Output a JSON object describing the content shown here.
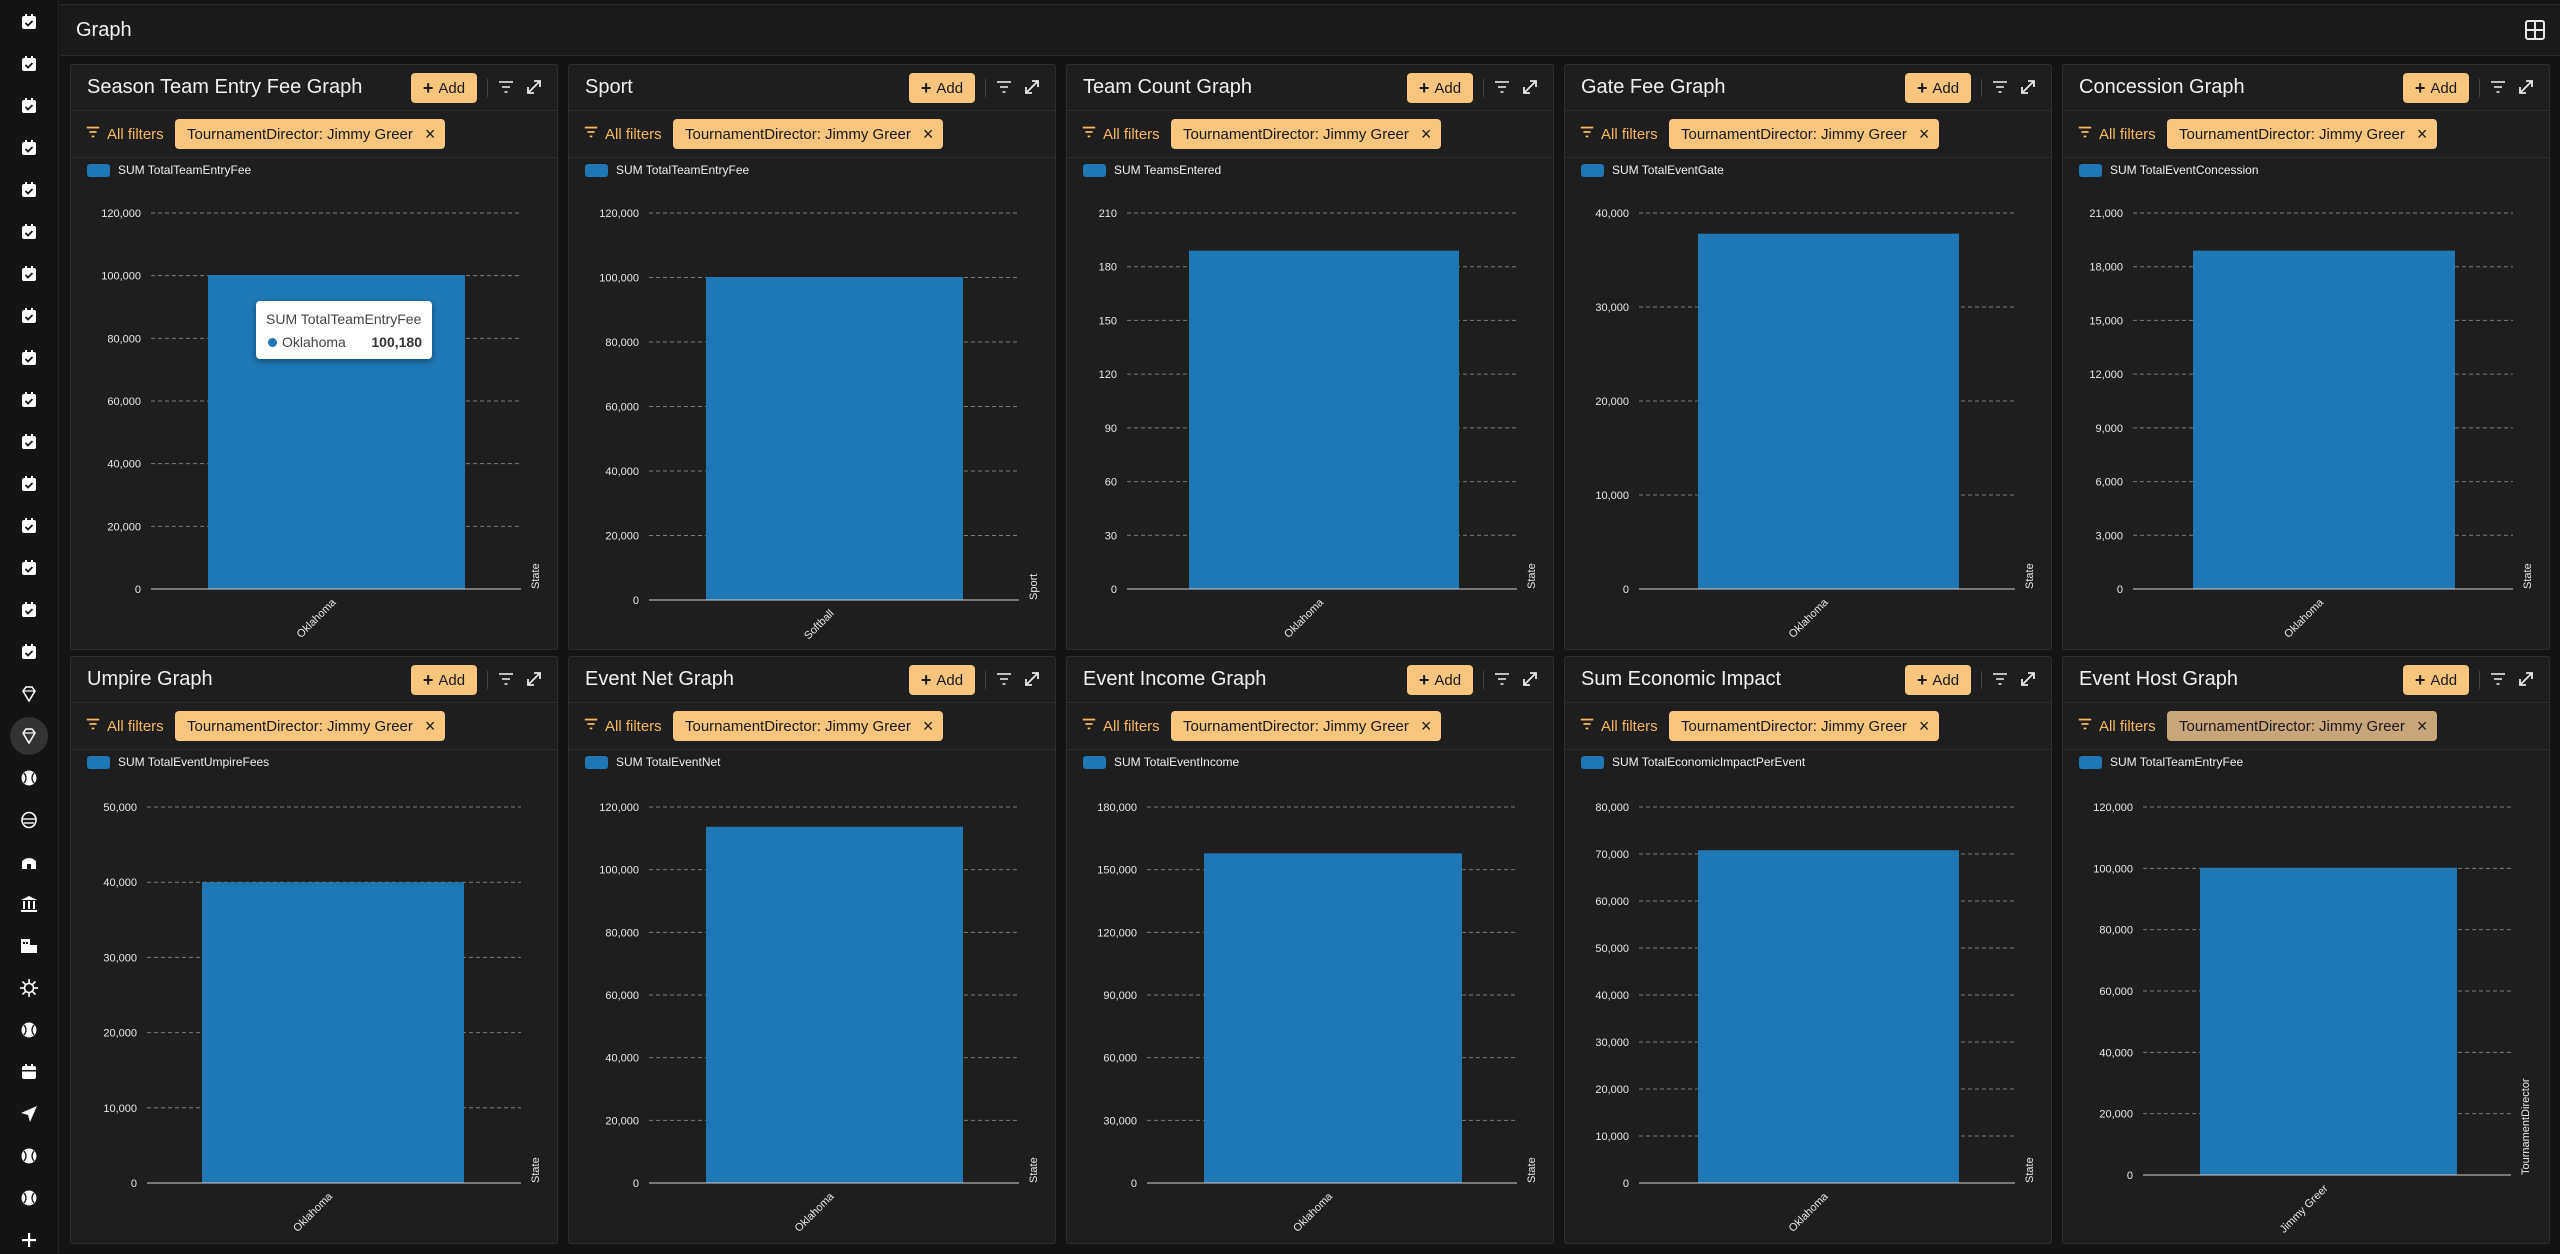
{
  "page": {
    "title": "Graph"
  },
  "ui": {
    "add_label": "Add",
    "all_filters_label": "All filters"
  },
  "colors": {
    "accent": "#f7c57d",
    "bar": "#1f77b4",
    "background": "#141414",
    "panel": "#1e1e1e"
  },
  "sidebar_icons": [
    "calendar-check-icon",
    "calendar-check-icon",
    "calendar-check-icon",
    "calendar-check-icon",
    "calendar-check-icon",
    "calendar-check-icon",
    "calendar-check-icon",
    "calendar-check-icon",
    "calendar-check-icon",
    "calendar-check-icon",
    "calendar-check-icon",
    "calendar-check-icon",
    "calendar-check-icon",
    "calendar-check-icon",
    "calendar-check-icon",
    "calendar-check-icon",
    "gem-icon",
    "gem-icon",
    "baseball-icon",
    "umpire-mask-icon",
    "stadium-icon",
    "bank-icon",
    "hotel-icon",
    "virus-icon",
    "baseball-icon",
    "calendar-icon",
    "send-icon",
    "baseball-icon",
    "baseball-icon",
    "plus-icon"
  ],
  "panels": [
    {
      "title": "Season Team Entry Fee Graph",
      "filter_chip": "TournamentDirector: Jimmy Greer",
      "legend": "SUM TotalTeamEntryFee",
      "tooltip": {
        "title": "SUM TotalTeamEntryFee",
        "category": "Oklahoma",
        "value": "100,180"
      }
    },
    {
      "title": "Sport",
      "filter_chip": "TournamentDirector: Jimmy Greer",
      "legend": "SUM TotalTeamEntryFee"
    },
    {
      "title": "Team Count Graph",
      "filter_chip": "TournamentDirector: Jimmy Greer",
      "legend": "SUM TeamsEntered"
    },
    {
      "title": "Gate Fee Graph",
      "filter_chip": "TournamentDirector: Jimmy Greer",
      "legend": "SUM TotalEventGate"
    },
    {
      "title": "Concession Graph",
      "filter_chip": "TournamentDirector: Jimmy Greer",
      "legend": "SUM TotalEventConcession"
    },
    {
      "title": "Umpire Graph",
      "filter_chip": "TournamentDirector: Jimmy Greer",
      "legend": "SUM TotalEventUmpireFees"
    },
    {
      "title": "Event Net Graph",
      "filter_chip": "TournamentDirector: Jimmy Greer",
      "legend": "SUM TotalEventNet"
    },
    {
      "title": "Event Income Graph",
      "filter_chip": "TournamentDirector: Jimmy Greer",
      "legend": "SUM TotalEventIncome"
    },
    {
      "title": "Sum Economic Impact",
      "filter_chip": "TournamentDirector: Jimmy Greer",
      "legend": "SUM TotalEconomicImpactPerEvent"
    },
    {
      "title": "Event Host Graph",
      "filter_chip": "TournamentDirector: Jimmy Greer",
      "legend": "SUM TotalTeamEntryFee"
    }
  ],
  "chart_data": [
    {
      "type": "bar",
      "categories": [
        "Oklahoma"
      ],
      "series": [
        {
          "name": "SUM TotalTeamEntryFee",
          "values": [
            100180
          ]
        }
      ],
      "ylim": [
        0,
        120000
      ],
      "yticks": [
        "0",
        "20,000",
        "40,000",
        "60,000",
        "80,000",
        "100,000",
        "120,000"
      ],
      "xlabel": "State",
      "grid": true
    },
    {
      "type": "bar",
      "categories": [
        "Softball"
      ],
      "series": [
        {
          "name": "SUM TotalTeamEntryFee",
          "values": [
            100180
          ]
        }
      ],
      "ylim": [
        0,
        120000
      ],
      "yticks": [
        "0",
        "20,000",
        "40,000",
        "60,000",
        "80,000",
        "100,000",
        "120,000"
      ],
      "xlabel": "Sport",
      "grid": true
    },
    {
      "type": "bar",
      "categories": [
        "Oklahoma"
      ],
      "series": [
        {
          "name": "SUM TeamsEntered",
          "values": [
            189
          ]
        }
      ],
      "ylim": [
        0,
        210
      ],
      "yticks": [
        "0",
        "30",
        "60",
        "90",
        "120",
        "150",
        "180",
        "210"
      ],
      "xlabel": "State",
      "grid": true
    },
    {
      "type": "bar",
      "categories": [
        "Oklahoma"
      ],
      "series": [
        {
          "name": "SUM TotalEventGate",
          "values": [
            37800
          ]
        }
      ],
      "ylim": [
        0,
        40000
      ],
      "yticks": [
        "0",
        "10,000",
        "20,000",
        "30,000",
        "40,000"
      ],
      "xlabel": "State",
      "grid": true
    },
    {
      "type": "bar",
      "categories": [
        "Oklahoma"
      ],
      "series": [
        {
          "name": "SUM TotalEventConcession",
          "values": [
            18900
          ]
        }
      ],
      "ylim": [
        0,
        21000
      ],
      "yticks": [
        "0",
        "3,000",
        "6,000",
        "9,000",
        "12,000",
        "15,000",
        "18,000",
        "21,000"
      ],
      "xlabel": "State",
      "grid": true
    },
    {
      "type": "bar",
      "categories": [
        "Oklahoma"
      ],
      "series": [
        {
          "name": "SUM TotalEventUmpireFees",
          "values": [
            40000
          ]
        }
      ],
      "ylim": [
        0,
        50000
      ],
      "yticks": [
        "0",
        "10,000",
        "20,000",
        "30,000",
        "40,000",
        "50,000"
      ],
      "xlabel": "State",
      "grid": true
    },
    {
      "type": "bar",
      "categories": [
        "Oklahoma"
      ],
      "series": [
        {
          "name": "SUM TotalEventNet",
          "values": [
            113700
          ]
        }
      ],
      "ylim": [
        0,
        120000
      ],
      "yticks": [
        "0",
        "20,000",
        "40,000",
        "60,000",
        "80,000",
        "100,000",
        "120,000"
      ],
      "xlabel": "State",
      "grid": true
    },
    {
      "type": "bar",
      "categories": [
        "Oklahoma"
      ],
      "series": [
        {
          "name": "SUM TotalEventIncome",
          "values": [
            157800
          ]
        }
      ],
      "ylim": [
        0,
        180000
      ],
      "yticks": [
        "0",
        "30,000",
        "60,000",
        "90,000",
        "120,000",
        "150,000",
        "180,000"
      ],
      "xlabel": "State",
      "grid": true
    },
    {
      "type": "bar",
      "categories": [
        "Oklahoma"
      ],
      "series": [
        {
          "name": "SUM TotalEconomicImpactPerEvent",
          "values": [
            70800
          ]
        }
      ],
      "ylim": [
        0,
        80000
      ],
      "yticks": [
        "0",
        "10,000",
        "20,000",
        "30,000",
        "40,000",
        "50,000",
        "60,000",
        "70,000",
        "80,000"
      ],
      "xlabel": "State",
      "grid": true
    },
    {
      "type": "bar",
      "categories": [
        "Jimmy Greer"
      ],
      "series": [
        {
          "name": "SUM TotalTeamEntryFee",
          "values": [
            100180
          ]
        }
      ],
      "ylim": [
        0,
        120000
      ],
      "yticks": [
        "0",
        "20,000",
        "40,000",
        "60,000",
        "80,000",
        "100,000",
        "120,000"
      ],
      "xlabel": "TournamentDirector",
      "grid": true
    }
  ]
}
